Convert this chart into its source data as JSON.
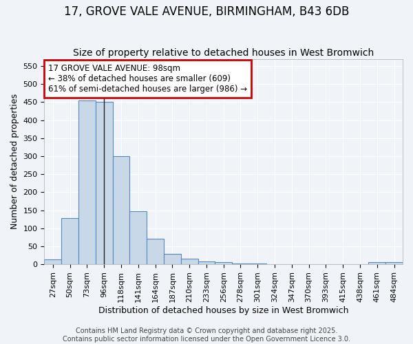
{
  "title_line1": "17, GROVE VALE AVENUE, BIRMINGHAM, B43 6DB",
  "title_line2": "Size of property relative to detached houses in West Bromwich",
  "xlabel": "Distribution of detached houses by size in West Bromwich",
  "ylabel": "Number of detached properties",
  "footer_line1": "Contains HM Land Registry data © Crown copyright and database right 2025.",
  "footer_line2": "Contains public sector information licensed under the Open Government Licence 3.0.",
  "bin_labels": [
    "27sqm",
    "50sqm",
    "73sqm",
    "96sqm",
    "118sqm",
    "141sqm",
    "164sqm",
    "187sqm",
    "210sqm",
    "233sqm",
    "256sqm",
    "278sqm",
    "301sqm",
    "324sqm",
    "347sqm",
    "370sqm",
    "393sqm",
    "415sqm",
    "438sqm",
    "461sqm",
    "484sqm"
  ],
  "bar_heights": [
    13,
    128,
    455,
    450,
    300,
    148,
    70,
    28,
    15,
    7,
    5,
    3,
    2,
    1,
    1,
    1,
    0,
    0,
    0,
    5,
    5
  ],
  "bar_color": "#c8d8e8",
  "bar_edge_color": "#5588bb",
  "vline_x": 3.5,
  "vline_color": "#222222",
  "annotation_box_text": "17 GROVE VALE AVENUE: 98sqm\n← 38% of detached houses are smaller (609)\n61% of semi-detached houses are larger (986) →",
  "annotation_box_color": "#cc0000",
  "annotation_text_color": "#000000",
  "ylim": [
    0,
    570
  ],
  "yticks": [
    0,
    50,
    100,
    150,
    200,
    250,
    300,
    350,
    400,
    450,
    500,
    550
  ],
  "background_color": "#f0f4f8",
  "plot_bg_color": "#f0f4f8",
  "grid_color": "#ffffff",
  "title_fontsize": 12,
  "subtitle_fontsize": 10,
  "axis_label_fontsize": 9,
  "tick_fontsize": 8,
  "annotation_fontsize": 8.5,
  "footer_fontsize": 7
}
